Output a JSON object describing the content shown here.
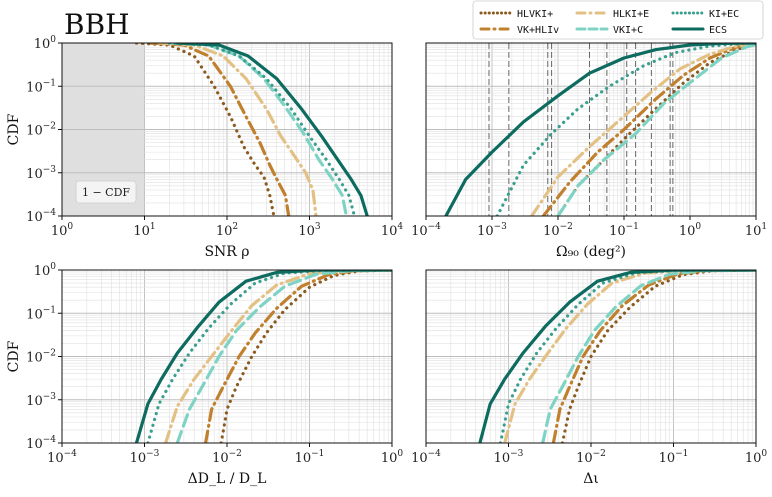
{
  "figure": {
    "title": "BBH",
    "colors": {
      "HLVKI+": "#8B5A1E",
      "VK+HLIv": "#C0802E",
      "HLKI+E": "#E3C185",
      "VKI+C": "#7FD3C4",
      "KI+EC": "#3A9F8F",
      "ECS": "#0E6B60"
    },
    "legend": {
      "placement": "top-right",
      "entries": [
        {
          "label": "HLVKI+",
          "style": "dotted",
          "color": "#8B5A1E"
        },
        {
          "label": "HLKI+E",
          "style": "dashdot",
          "color": "#E3C185"
        },
        {
          "label": "KI+EC",
          "style": "dotted",
          "color": "#3A9F8F"
        },
        {
          "label": "VK+HLIv",
          "style": "dashdot",
          "color": "#C0802E"
        },
        {
          "label": "VKI+C",
          "style": "dashed",
          "color": "#7FD3C4"
        },
        {
          "label": "ECS",
          "style": "solid",
          "color": "#0E6B60"
        }
      ]
    }
  },
  "chart_data": [
    {
      "id": "snr",
      "type": "line",
      "xlabel": "SNR  ρ",
      "ylabel": "CDF",
      "xscale": "log",
      "yscale": "log",
      "xlim": [
        1,
        10000
      ],
      "ylim": [
        0.0001,
        1
      ],
      "xticks": [
        "10^0",
        "10^1",
        "10^2",
        "10^3",
        "10^4"
      ],
      "yticks": [
        "10^-4",
        "10^-3",
        "10^-2",
        "10^-1",
        "10^0"
      ],
      "annotation": "1 − CDF",
      "shaded_region": [
        1,
        10
      ],
      "series": [
        {
          "name": "HLVKI+",
          "x": [
            8,
            20,
            40,
            70,
            110,
            160,
            220,
            280,
            330,
            370
          ],
          "y": [
            1,
            0.9,
            0.5,
            0.1,
            0.02,
            0.004,
            0.0015,
            0.0008,
            0.0003,
            0.0001
          ]
        },
        {
          "name": "VK+HLIv",
          "x": [
            12,
            30,
            60,
            110,
            170,
            250,
            330,
            420,
            510,
            560
          ],
          "y": [
            1,
            0.9,
            0.5,
            0.1,
            0.02,
            0.005,
            0.0015,
            0.0006,
            0.0003,
            0.0001
          ]
        },
        {
          "name": "HLKI+E",
          "x": [
            15,
            40,
            90,
            170,
            300,
            450,
            650,
            900,
            1100,
            1200
          ],
          "y": [
            1,
            0.9,
            0.5,
            0.15,
            0.03,
            0.007,
            0.0025,
            0.001,
            0.0004,
            0.0001
          ]
        },
        {
          "name": "VKI+C",
          "x": [
            20,
            60,
            140,
            280,
            500,
            850,
            1300,
            1900,
            2500,
            2800
          ],
          "y": [
            1,
            0.9,
            0.5,
            0.15,
            0.035,
            0.008,
            0.002,
            0.0007,
            0.0003,
            0.0001
          ]
        },
        {
          "name": "KI+EC",
          "x": [
            20,
            60,
            140,
            300,
            600,
            1000,
            1600,
            2300,
            3000,
            3500
          ],
          "y": [
            1,
            0.9,
            0.5,
            0.15,
            0.03,
            0.007,
            0.002,
            0.0007,
            0.0003,
            0.0001
          ]
        },
        {
          "name": "ECS",
          "x": [
            25,
            80,
            180,
            400,
            800,
            1400,
            2200,
            3200,
            4200,
            5000
          ],
          "y": [
            1,
            0.9,
            0.5,
            0.15,
            0.03,
            0.007,
            0.002,
            0.0007,
            0.0003,
            0.0001
          ]
        }
      ]
    },
    {
      "id": "omega",
      "type": "line",
      "xlabel": "Ω₉₀ (deg²)",
      "ylabel": "",
      "xscale": "log",
      "yscale": "log",
      "xlim": [
        0.0001,
        10
      ],
      "ylim": [
        0.0001,
        1
      ],
      "xticks": [
        "10^-4",
        "10^-3",
        "10^-2",
        "10^-1",
        "10^0",
        "10^1"
      ],
      "yticks": [],
      "vlines": [
        0.0009,
        0.0018,
        0.007,
        0.008,
        0.03,
        0.055,
        0.11,
        0.15,
        0.26,
        0.5,
        0.55,
        10
      ],
      "series": [
        {
          "name": "HLVKI+",
          "x": [
            0.01,
            0.02,
            0.05,
            0.1,
            0.3,
            0.8,
            2,
            5,
            10
          ],
          "y": [
            0.0001,
            0.0005,
            0.002,
            0.006,
            0.03,
            0.12,
            0.35,
            0.7,
            0.95
          ]
        },
        {
          "name": "VK+HLIv",
          "x": [
            0.006,
            0.015,
            0.04,
            0.1,
            0.3,
            0.8,
            2,
            5,
            10
          ],
          "y": [
            0.0001,
            0.0006,
            0.003,
            0.01,
            0.05,
            0.18,
            0.45,
            0.8,
            0.97
          ]
        },
        {
          "name": "HLKI+E",
          "x": [
            0.004,
            0.01,
            0.03,
            0.08,
            0.25,
            0.7,
            2,
            5,
            10
          ],
          "y": [
            0.0001,
            0.0008,
            0.004,
            0.015,
            0.07,
            0.25,
            0.55,
            0.85,
            0.98
          ]
        },
        {
          "name": "VKI+C",
          "x": [
            0.01,
            0.02,
            0.05,
            0.15,
            0.4,
            1.2,
            3,
            7,
            10
          ],
          "y": [
            0.0001,
            0.0005,
            0.002,
            0.008,
            0.04,
            0.15,
            0.45,
            0.8,
            0.92
          ]
        },
        {
          "name": "KI+EC",
          "x": [
            0.0012,
            0.003,
            0.008,
            0.02,
            0.06,
            0.2,
            0.6,
            2,
            6,
            10
          ],
          "y": [
            0.0001,
            0.0015,
            0.008,
            0.03,
            0.1,
            0.3,
            0.6,
            0.85,
            0.97,
            1
          ]
        },
        {
          "name": "ECS",
          "x": [
            0.0002,
            0.0004,
            0.001,
            0.003,
            0.01,
            0.03,
            0.1,
            0.3,
            1,
            3,
            10
          ],
          "y": [
            0.0001,
            0.0007,
            0.003,
            0.015,
            0.06,
            0.2,
            0.45,
            0.7,
            0.9,
            0.98,
            1
          ]
        }
      ]
    },
    {
      "id": "dl",
      "type": "line",
      "xlabel": "ΔD_L / D_L",
      "ylabel": "CDF",
      "xscale": "log",
      "yscale": "log",
      "xlim": [
        0.0001,
        1
      ],
      "ylim": [
        0.0001,
        1
      ],
      "xticks": [
        "10^-4",
        "10^-3",
        "10^-2",
        "10^-1",
        "10^0"
      ],
      "yticks": [
        "10^-4",
        "10^-3",
        "10^-2",
        "10^-1",
        "10^0"
      ],
      "series": [
        {
          "name": "HLVKI+",
          "x": [
            0.0085,
            0.01,
            0.013,
            0.02,
            0.03,
            0.05,
            0.1,
            0.2,
            0.4,
            1
          ],
          "y": [
            0.0001,
            0.0006,
            0.002,
            0.01,
            0.035,
            0.12,
            0.4,
            0.75,
            0.95,
            1
          ]
        },
        {
          "name": "VK+HLIv",
          "x": [
            0.0055,
            0.0065,
            0.009,
            0.014,
            0.022,
            0.04,
            0.08,
            0.17,
            0.35,
            1
          ],
          "y": [
            0.0001,
            0.0006,
            0.002,
            0.01,
            0.035,
            0.13,
            0.42,
            0.78,
            0.96,
            1
          ]
        },
        {
          "name": "HLKI+E",
          "x": [
            0.0018,
            0.0025,
            0.004,
            0.007,
            0.012,
            0.02,
            0.04,
            0.1,
            0.25,
            1
          ],
          "y": [
            0.0001,
            0.0007,
            0.003,
            0.012,
            0.045,
            0.15,
            0.45,
            0.82,
            0.97,
            1
          ]
        },
        {
          "name": "VKI+C",
          "x": [
            0.0025,
            0.0035,
            0.005,
            0.008,
            0.013,
            0.025,
            0.05,
            0.12,
            0.3,
            1
          ],
          "y": [
            0.0001,
            0.0006,
            0.002,
            0.01,
            0.04,
            0.14,
            0.42,
            0.8,
            0.96,
            1
          ]
        },
        {
          "name": "KI+EC",
          "x": [
            0.0011,
            0.0015,
            0.0022,
            0.0035,
            0.006,
            0.011,
            0.022,
            0.05,
            0.15,
            1
          ],
          "y": [
            0.0001,
            0.0008,
            0.003,
            0.012,
            0.045,
            0.16,
            0.5,
            0.85,
            0.98,
            1
          ]
        },
        {
          "name": "ECS",
          "x": [
            0.0008,
            0.0011,
            0.0016,
            0.0025,
            0.0045,
            0.008,
            0.017,
            0.04,
            0.12,
            1
          ],
          "y": [
            0.0001,
            0.0008,
            0.003,
            0.012,
            0.05,
            0.18,
            0.55,
            0.88,
            0.99,
            1
          ]
        }
      ]
    },
    {
      "id": "iota",
      "type": "line",
      "xlabel": "Δι",
      "ylabel": "",
      "xscale": "log",
      "yscale": "log",
      "xlim": [
        0.0001,
        1
      ],
      "ylim": [
        0.0001,
        1
      ],
      "xticks": [
        "10^-4",
        "10^-3",
        "10^-2",
        "10^-1",
        "10^0"
      ],
      "yticks": [],
      "series": [
        {
          "name": "HLVKI+",
          "x": [
            0.0045,
            0.0055,
            0.007,
            0.01,
            0.016,
            0.03,
            0.06,
            0.13,
            0.3,
            1
          ],
          "y": [
            0.0001,
            0.0006,
            0.002,
            0.01,
            0.04,
            0.14,
            0.42,
            0.78,
            0.96,
            1
          ]
        },
        {
          "name": "VK+HLIv",
          "x": [
            0.0035,
            0.0042,
            0.0055,
            0.008,
            0.013,
            0.024,
            0.05,
            0.11,
            0.25,
            1
          ],
          "y": [
            0.0001,
            0.0006,
            0.002,
            0.01,
            0.04,
            0.15,
            0.45,
            0.8,
            0.97,
            1
          ]
        },
        {
          "name": "HLKI+E",
          "x": [
            0.0009,
            0.0012,
            0.0018,
            0.003,
            0.005,
            0.009,
            0.018,
            0.045,
            0.14,
            1
          ],
          "y": [
            0.0001,
            0.0008,
            0.003,
            0.012,
            0.045,
            0.16,
            0.5,
            0.85,
            0.98,
            1
          ]
        },
        {
          "name": "VKI+C",
          "x": [
            0.0026,
            0.0032,
            0.0045,
            0.007,
            0.011,
            0.02,
            0.04,
            0.09,
            0.22,
            1
          ],
          "y": [
            0.0001,
            0.0006,
            0.002,
            0.01,
            0.04,
            0.14,
            0.43,
            0.8,
            0.96,
            1
          ]
        },
        {
          "name": "KI+EC",
          "x": [
            0.0008,
            0.001,
            0.0014,
            0.0022,
            0.0038,
            0.007,
            0.014,
            0.035,
            0.11,
            1
          ],
          "y": [
            0.0001,
            0.0008,
            0.003,
            0.012,
            0.045,
            0.16,
            0.5,
            0.86,
            0.98,
            1
          ]
        },
        {
          "name": "ECS",
          "x": [
            0.00045,
            0.0006,
            0.0009,
            0.0015,
            0.0028,
            0.0055,
            0.012,
            0.03,
            0.1,
            1
          ],
          "y": [
            0.0001,
            0.0008,
            0.003,
            0.012,
            0.05,
            0.18,
            0.55,
            0.88,
            0.99,
            1
          ]
        }
      ]
    }
  ]
}
